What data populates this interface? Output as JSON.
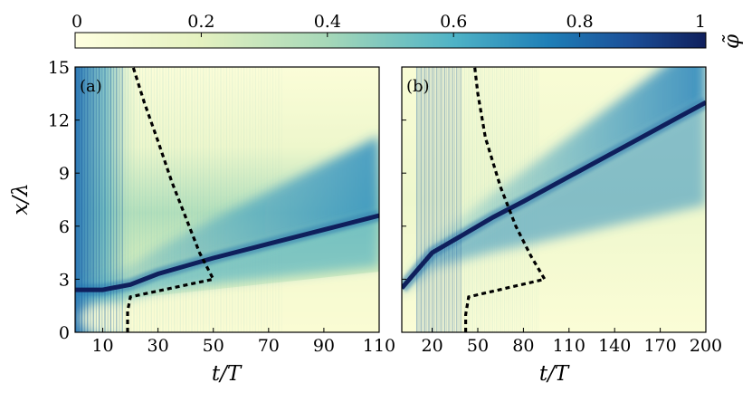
{
  "colorbar": {
    "label": "φ̃",
    "ticks": [
      "0",
      "0.2",
      "0.4",
      "0.6",
      "0.8",
      "1"
    ],
    "range": [
      0,
      1
    ],
    "colors": [
      "#ffffe0",
      "#e4f1c0",
      "#a6d8b8",
      "#4fb3c6",
      "#1f7fb7",
      "#1c4f98",
      "#0f1f5c"
    ]
  },
  "chart_data": [
    {
      "type": "heatmap",
      "panel": "(a)",
      "xlabel": "t/T",
      "ylabel": "x/λ",
      "xticks": [
        "10",
        "30",
        "50",
        "70",
        "90",
        "110"
      ],
      "yticks": [
        "0",
        "3",
        "6",
        "9",
        "12",
        "15"
      ],
      "xlim": [
        0,
        110
      ],
      "ylim": [
        0,
        15
      ],
      "ridge": {
        "x": [
          0,
          10,
          20,
          30,
          50,
          70,
          90,
          110
        ],
        "y": [
          2.4,
          2.4,
          2.7,
          3.3,
          4.2,
          5.0,
          5.8,
          6.6
        ]
      },
      "dashed_boundary": {
        "x": [
          19,
          19,
          20,
          50,
          45,
          40,
          35,
          30,
          25,
          21
        ],
        "y": [
          0,
          1.2,
          2.0,
          3.0,
          4.5,
          6.5,
          8.5,
          10.8,
          13.0,
          15.0
        ]
      }
    },
    {
      "type": "heatmap",
      "panel": "(b)",
      "xlabel": "t/T",
      "ylabel": "",
      "xticks": [
        "20",
        "50",
        "80",
        "110",
        "140",
        "170",
        "200"
      ],
      "xlim": [
        0,
        200
      ],
      "ylim": [
        0,
        15
      ],
      "ridge": {
        "x": [
          0,
          10,
          20,
          40,
          60,
          80,
          110,
          140,
          170,
          200
        ],
        "y": [
          2.5,
          3.5,
          4.5,
          5.5,
          6.5,
          7.4,
          8.8,
          10.2,
          11.6,
          13.0
        ]
      },
      "dashed_boundary": {
        "x": [
          42,
          42,
          44,
          94,
          85,
          75,
          65,
          55,
          50,
          48
        ],
        "y": [
          0,
          1.0,
          2.0,
          3.0,
          4.3,
          6.0,
          8.2,
          11.0,
          13.5,
          15.0
        ]
      }
    }
  ]
}
